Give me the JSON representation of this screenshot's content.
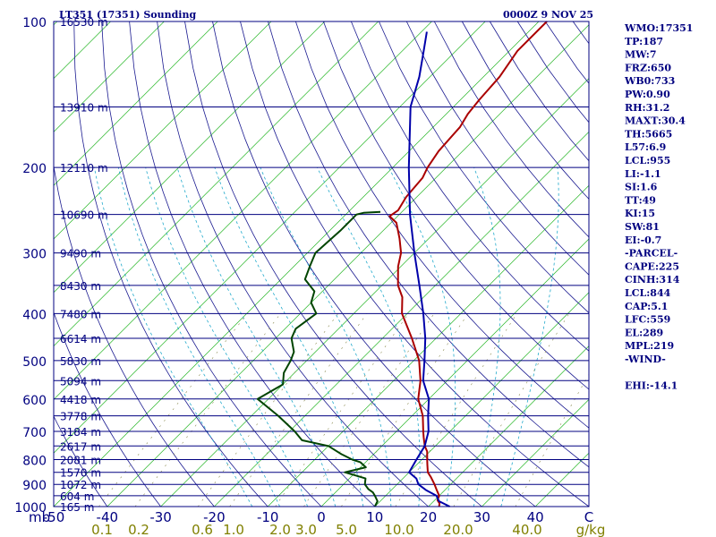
{
  "chart_data": {
    "type": "line",
    "title": "LT351 (17351) Sounding",
    "time": "0000Z  9 NOV 25",
    "pressure_levels": [
      {
        "p": 100,
        "h": "16530 m"
      },
      {
        "p": 150,
        "h": "13910 m"
      },
      {
        "p": 200,
        "h": "12110 m"
      },
      {
        "p": 250,
        "h": "10690 m"
      },
      {
        "p": 300,
        "h": "9490 m"
      },
      {
        "p": 350,
        "h": "8430 m"
      },
      {
        "p": 400,
        "h": "7480 m"
      },
      {
        "p": 450,
        "h": "6614 m"
      },
      {
        "p": 500,
        "h": "5830 m"
      },
      {
        "p": 550,
        "h": "5094 m"
      },
      {
        "p": 600,
        "h": "4418 m"
      },
      {
        "p": 650,
        "h": "3778 m"
      },
      {
        "p": 700,
        "h": "3184 m"
      },
      {
        "p": 750,
        "h": "2617 m"
      },
      {
        "p": 800,
        "h": "2081 m"
      },
      {
        "p": 850,
        "h": "1570 m"
      },
      {
        "p": 900,
        "h": "1072 m"
      },
      {
        "p": 950,
        "h": "604 m"
      },
      {
        "p": 1000,
        "h": "165 m"
      }
    ],
    "pressure_labels": [
      100,
      200,
      300,
      400,
      500,
      600,
      700,
      800,
      900,
      1000
    ],
    "x_unit_label": "mb",
    "temperature_ticks": [
      -50,
      -40,
      -30,
      -20,
      -10,
      0,
      10,
      20,
      30,
      40
    ],
    "x_end_label": "C",
    "mixing_ratio_ticks": [
      "0.1",
      "0.2",
      "0.6",
      "1.0",
      "2.0",
      "3.0",
      "5.0",
      "10.0",
      "20.0",
      "40.0"
    ],
    "mixing_ratio_unit": "g/kg",
    "xlim": [
      -50,
      50
    ],
    "plim": [
      1000,
      100
    ],
    "series": [
      {
        "key": "temperature",
        "color": "#aa0000",
        "points": [
          [
            1000,
            22
          ],
          [
            985,
            21.5
          ],
          [
            970,
            20.5
          ],
          [
            950,
            20
          ],
          [
            925,
            18.5
          ],
          [
            900,
            17
          ],
          [
            870,
            15
          ],
          [
            850,
            13.5
          ],
          [
            820,
            12
          ],
          [
            800,
            11
          ],
          [
            770,
            9.5
          ],
          [
            750,
            8
          ],
          [
            720,
            6.2
          ],
          [
            700,
            5
          ],
          [
            650,
            2
          ],
          [
            600,
            -2
          ],
          [
            550,
            -5
          ],
          [
            500,
            -9
          ],
          [
            450,
            -14.5
          ],
          [
            400,
            -21
          ],
          [
            370,
            -24
          ],
          [
            350,
            -27
          ],
          [
            320,
            -30.5
          ],
          [
            300,
            -32.5
          ],
          [
            280,
            -35.5
          ],
          [
            260,
            -39
          ],
          [
            252,
            -41.5
          ],
          [
            245,
            -41
          ],
          [
            230,
            -42
          ],
          [
            210,
            -42.5
          ],
          [
            200,
            -43.5
          ],
          [
            185,
            -44.5
          ],
          [
            165,
            -45
          ],
          [
            155,
            -46
          ],
          [
            145,
            -46.5
          ],
          [
            130,
            -47
          ],
          [
            115,
            -48.5
          ],
          [
            100,
            -48.5
          ]
        ]
      },
      {
        "key": "dewpoint",
        "color": "#004400",
        "points": [
          [
            1000,
            10
          ],
          [
            975,
            9.5
          ],
          [
            950,
            8
          ],
          [
            935,
            7
          ],
          [
            920,
            5.5
          ],
          [
            900,
            4
          ],
          [
            875,
            3
          ],
          [
            850,
            -2
          ],
          [
            830,
            1
          ],
          [
            810,
            -1
          ],
          [
            800,
            -3
          ],
          [
            780,
            -6
          ],
          [
            750,
            -10
          ],
          [
            730,
            -16
          ],
          [
            700,
            -19
          ],
          [
            650,
            -25
          ],
          [
            600,
            -32
          ],
          [
            560,
            -30
          ],
          [
            530,
            -32
          ],
          [
            500,
            -33
          ],
          [
            480,
            -34
          ],
          [
            450,
            -37
          ],
          [
            430,
            -38
          ],
          [
            400,
            -37
          ],
          [
            380,
            -40
          ],
          [
            360,
            -41.5
          ],
          [
            340,
            -45.5
          ],
          [
            320,
            -47
          ],
          [
            300,
            -48.5
          ],
          [
            270,
            -48
          ],
          [
            250,
            -48
          ],
          [
            248,
            -47
          ],
          [
            247,
            -44
          ]
        ]
      },
      {
        "key": "parcel",
        "color": "#0000aa",
        "points": [
          [
            1000,
            24
          ],
          [
            975,
            21
          ],
          [
            950,
            19.5
          ],
          [
            925,
            16.5
          ],
          [
            900,
            14
          ],
          [
            875,
            12.5
          ],
          [
            850,
            10
          ],
          [
            800,
            9
          ],
          [
            750,
            8
          ],
          [
            700,
            6
          ],
          [
            650,
            3
          ],
          [
            600,
            0
          ],
          [
            550,
            -4.5
          ],
          [
            500,
            -8
          ],
          [
            450,
            -12
          ],
          [
            400,
            -17
          ],
          [
            350,
            -23
          ],
          [
            300,
            -30
          ],
          [
            250,
            -38
          ],
          [
            200,
            -47
          ],
          [
            150,
            -58
          ],
          [
            130,
            -62
          ],
          [
            115,
            -66
          ],
          [
            105,
            -69
          ]
        ]
      }
    ]
  },
  "indices": [
    "WMO:17351",
    "TP:187",
    "MW:7",
    "FRZ:650",
    "WB0:733",
    "PW:0.90",
    "RH:31.2",
    "MAXT:30.4",
    "TH:5665",
    "L57:6.9",
    "LCL:955",
    "LI:-1.1",
    "SI:1.6",
    "TT:49",
    "KI:15",
    "SW:81",
    "EI:-0.7",
    "-PARCEL-",
    "CAPE:225",
    "CINH:314",
    "LCL:844",
    "CAP:5.1",
    "LFC:559",
    "EL:289",
    "MPL:219",
    "-WIND-",
    "",
    "EHI:-14.1"
  ]
}
